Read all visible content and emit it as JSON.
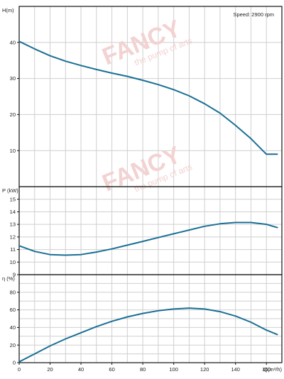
{
  "chart_data": [
    {
      "type": "line",
      "id": "head",
      "ylabel": "H(m)",
      "annotation": "Speed: 2900 rpm",
      "xlim": [
        0,
        170
      ],
      "ylim": [
        0,
        50
      ],
      "yticks": [
        10,
        20,
        30,
        40
      ],
      "grid": true,
      "series": [
        {
          "x": [
            0,
            10,
            20,
            30,
            40,
            50,
            60,
            70,
            80,
            90,
            100,
            110,
            120,
            130,
            140,
            150,
            160,
            167
          ],
          "values": [
            40.3,
            38.2,
            36.3,
            34.8,
            33.6,
            32.5,
            31.5,
            30.6,
            29.5,
            28.3,
            26.9,
            25.2,
            23.0,
            20.4,
            17.0,
            13.3,
            9.0,
            9.0
          ]
        }
      ]
    },
    {
      "type": "line",
      "id": "power",
      "ylabel": "P (kW)",
      "xlim": [
        0,
        170
      ],
      "ylim": [
        9,
        16
      ],
      "yticks": [
        9,
        10,
        11,
        12,
        13,
        14,
        15
      ],
      "grid": true,
      "series": [
        {
          "x": [
            0,
            10,
            20,
            30,
            40,
            50,
            60,
            70,
            80,
            90,
            100,
            110,
            120,
            130,
            140,
            150,
            160,
            167
          ],
          "values": [
            11.3,
            10.85,
            10.6,
            10.55,
            10.6,
            10.8,
            11.05,
            11.35,
            11.65,
            11.95,
            12.25,
            12.55,
            12.85,
            13.05,
            13.15,
            13.15,
            13.0,
            12.75
          ]
        }
      ]
    },
    {
      "type": "line",
      "id": "efficiency",
      "ylabel": "η (%)",
      "xlabel": "Q(m³/h)",
      "xlim": [
        0,
        170
      ],
      "ylim": [
        0,
        100
      ],
      "xticks": [
        0,
        20,
        40,
        60,
        80,
        100,
        120,
        140,
        160
      ],
      "yticks": [
        0,
        20,
        40,
        60,
        80
      ],
      "grid": true,
      "series": [
        {
          "x": [
            0,
            10,
            20,
            30,
            40,
            50,
            60,
            70,
            80,
            90,
            100,
            110,
            120,
            130,
            140,
            150,
            160,
            167
          ],
          "values": [
            1,
            10,
            19,
            27,
            34,
            41,
            47,
            52,
            56,
            59,
            61,
            62,
            61,
            58,
            53,
            46,
            37,
            32
          ]
        }
      ]
    }
  ],
  "watermark": {
    "brand": "FANCY",
    "slogan": "the pump of arts"
  },
  "colors": {
    "curve": "#1a6f94",
    "grid": "#cfcfcf",
    "axis": "#111111",
    "watermark": "#f3d2d2"
  }
}
